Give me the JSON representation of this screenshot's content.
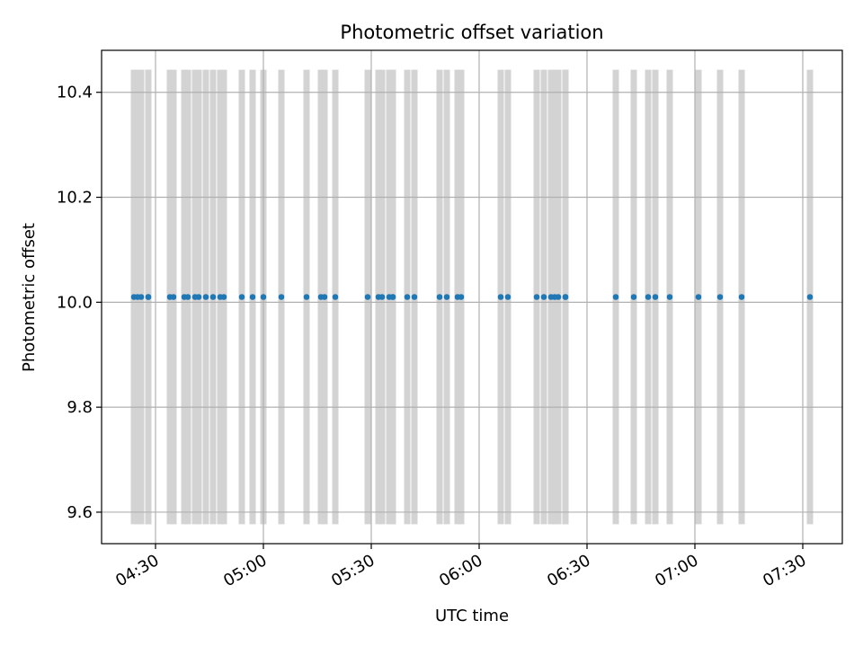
{
  "chart_data": {
    "type": "scatter",
    "title": "Photometric offset variation",
    "xlabel": "UTC time",
    "ylabel": "Photometric offset",
    "xlim": [
      "04:15",
      "07:41"
    ],
    "ylim": [
      9.54,
      10.48
    ],
    "grid": true,
    "xticks": [
      "04:30",
      "05:00",
      "05:30",
      "06:00",
      "06:30",
      "07:00",
      "07:30"
    ],
    "yticks": [
      "9.6",
      "9.8",
      "10.0",
      "10.2",
      "10.4"
    ],
    "ytick_values": [
      9.6,
      9.8,
      10.0,
      10.2,
      10.4
    ],
    "band_range": [
      9.577,
      10.443
    ],
    "band_color": "#d3d3d3",
    "point_color": "#1f77b4",
    "series": [
      {
        "times": [
          "04:24",
          "04:25",
          "04:26",
          "04:28",
          "04:28",
          "04:34",
          "04:35",
          "04:38",
          "04:39",
          "04:41",
          "04:42",
          "04:44",
          "04:46",
          "04:48",
          "04:49",
          "04:54",
          "04:57",
          "05:00",
          "05:05",
          "05:12",
          "05:16",
          "05:17",
          "05:20",
          "05:29",
          "05:32",
          "05:33",
          "05:35",
          "05:36",
          "05:36",
          "05:40",
          "05:42",
          "05:49",
          "05:51",
          "05:54",
          "05:55",
          "06:06",
          "06:08",
          "06:16",
          "06:18",
          "06:20",
          "06:21",
          "06:22",
          "06:24",
          "06:24",
          "06:38",
          "06:43",
          "06:47",
          "06:49",
          "06:53",
          "07:01",
          "07:07",
          "07:13",
          "07:32"
        ],
        "values": [
          10.01,
          10.01,
          10.01,
          10.01,
          10.01,
          10.01,
          10.01,
          10.01,
          10.01,
          10.01,
          10.01,
          10.01,
          10.01,
          10.01,
          10.01,
          10.01,
          10.01,
          10.01,
          10.01,
          10.01,
          10.01,
          10.01,
          10.01,
          10.01,
          10.01,
          10.01,
          10.01,
          10.01,
          10.01,
          10.01,
          10.01,
          10.01,
          10.01,
          10.01,
          10.01,
          10.01,
          10.01,
          10.01,
          10.01,
          10.01,
          10.01,
          10.01,
          10.01,
          10.01,
          10.01,
          10.01,
          10.01,
          10.01,
          10.01,
          10.01,
          10.01,
          10.01,
          10.01
        ]
      }
    ]
  }
}
